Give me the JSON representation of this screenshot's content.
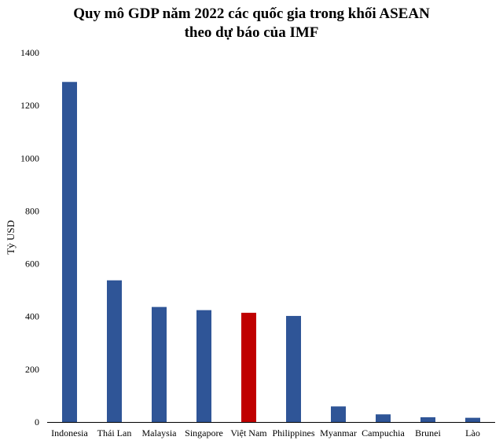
{
  "chart_data": {
    "type": "bar",
    "title_line1": "Quy mô GDP năm 2022 các quốc gia trong khối ASEAN",
    "title_line2": "theo dự báo của IMF",
    "xlabel": "",
    "ylabel": "Tỷ USD",
    "ylim": [
      0,
      1400
    ],
    "yticks": [
      0,
      200,
      400,
      600,
      800,
      1000,
      1200,
      1400
    ],
    "grid": false,
    "categories": [
      "Indonesia",
      "Thái Lan",
      "Malaysia",
      "Singapore",
      "Việt Nam",
      "Philippines",
      "Myanmar",
      "Campuchia",
      "Brunei",
      "Lào"
    ],
    "values": [
      1289,
      537,
      436,
      424,
      414,
      402,
      59,
      29,
      18,
      16
    ],
    "bar_color": "#2f5597",
    "highlight_color": "#c00000",
    "highlight_category": "Việt Nam"
  }
}
